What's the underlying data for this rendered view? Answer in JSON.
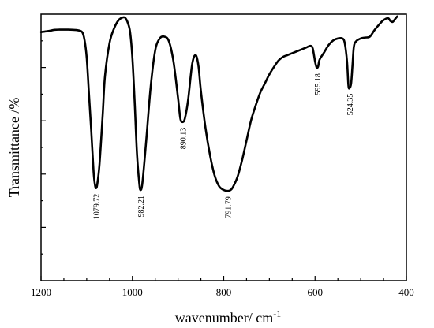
{
  "chart_data": {
    "type": "line",
    "title": "",
    "xlabel": "wavenumber/ cm",
    "xlabel_superscript": "-1",
    "ylabel": "Transmittance /%",
    "xlim": [
      1200,
      400
    ],
    "x_reversed": true,
    "x_ticks": [
      1200,
      1000,
      800,
      600,
      400
    ],
    "y_tick_labels_shown": false,
    "y_ticks_count": 5,
    "grid": false,
    "legend": "none",
    "line_color": "#000000",
    "series": [
      {
        "x": [
          1200,
          1185,
          1170,
          1160,
          1150,
          1140,
          1130,
          1120,
          1110,
          1105,
          1100,
          1095,
          1090,
          1085,
          1082,
          1079.72,
          1077,
          1072,
          1065,
          1060,
          1050,
          1040,
          1030,
          1020,
          1015,
          1010,
          1005,
          1000,
          995,
          990,
          985,
          982.21,
          978,
          970,
          960,
          950,
          940,
          930,
          920,
          910,
          900,
          895,
          890.13,
          885,
          878,
          870,
          865,
          860,
          855,
          850,
          840,
          830,
          820,
          810,
          800,
          791.79,
          785,
          780,
          770,
          760,
          750,
          740,
          730,
          720,
          710,
          700,
          690,
          680,
          670,
          660,
          650,
          640,
          630,
          620,
          610,
          605,
          600,
          597,
          595.18,
          593,
          590,
          580,
          570,
          560,
          550,
          540,
          535,
          530,
          527,
          524.35,
          521,
          518,
          515,
          510,
          500,
          490,
          480,
          470,
          460,
          450,
          440,
          435,
          430,
          425,
          420
        ],
        "y": [
          92,
          92.5,
          93.2,
          93.3,
          93.3,
          93.3,
          93.2,
          93.0,
          92.0,
          88,
          78,
          58,
          38,
          16,
          9,
          7,
          9,
          20,
          47,
          68,
          86,
          94,
          98.5,
          100,
          99.5,
          97,
          92,
          78,
          54,
          26,
          10,
          6,
          10,
          32,
          62,
          82,
          88.5,
          89.5,
          87,
          76,
          56,
          45,
          43,
          45,
          55,
          73,
          78.5,
          79,
          73,
          60,
          40,
          25,
          14,
          8,
          6,
          5.5,
          6,
          7.5,
          13,
          22,
          33,
          44,
          52,
          59,
          64,
          69,
          73,
          76.5,
          78.5,
          79.5,
          80.5,
          81.5,
          82.5,
          83.5,
          84.5,
          83,
          76,
          73,
          72.5,
          73.5,
          77,
          81,
          85,
          87.5,
          88.5,
          88.5,
          86,
          76,
          63,
          61.5,
          64,
          74,
          84,
          87,
          88.5,
          89,
          89.5,
          93,
          96,
          98.5,
          99.5,
          98,
          97.5,
          99,
          100.5
        ]
      }
    ],
    "annotations": [
      {
        "label": "1079.72",
        "x": 1079.72,
        "y": 7
      },
      {
        "label": "982.21",
        "x": 982.21,
        "y": 6
      },
      {
        "label": "890.13",
        "x": 890.13,
        "y": 43
      },
      {
        "label": "791.79",
        "x": 791.79,
        "y": 5.5
      },
      {
        "label": "595.18",
        "x": 595.18,
        "y": 72.5
      },
      {
        "label": "524.35",
        "x": 524.35,
        "y": 61.5
      }
    ]
  }
}
